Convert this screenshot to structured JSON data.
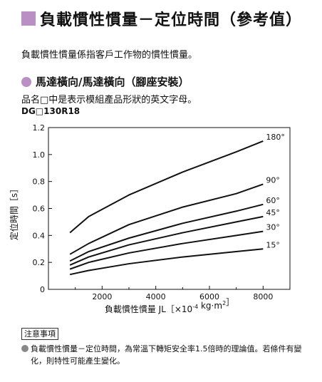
{
  "header": {
    "title": "負載慣性慣量－定位時間（參考值）",
    "subtitle": "負載慣性慣量係指客戶工作物的慣性慣量。"
  },
  "section": {
    "title": "馬達橫向/馬達橫向（腳座安裝）",
    "description": "品名□中是表示模組產品形狀的英文字母。",
    "model": "DG□130R18"
  },
  "colors": {
    "accent": "#b98fc4",
    "line": "#111111",
    "note_bullet": "#888888"
  },
  "chart_data": {
    "type": "line",
    "title": "",
    "xlabel": "負載慣性慣量 JL［×10",
    "xlabel_exp": "-4",
    "xlabel_unit": " kg·m",
    "xlabel_unit_exp": "2",
    "xlabel_close": "］",
    "ylabel": "定位時間［s］",
    "xlim": [
      0,
      9000
    ],
    "ylim": [
      0,
      1.2
    ],
    "x_ticks": [
      {
        "value": 2000,
        "label": "2000"
      },
      {
        "value": 4000,
        "label": "4000"
      },
      {
        "value": 6000,
        "label": "6000"
      },
      {
        "value": 8000,
        "label": "8000"
      }
    ],
    "y_ticks": [
      {
        "value": 0,
        "label": "0"
      },
      {
        "value": 0.2,
        "label": "0.2"
      },
      {
        "value": 0.4,
        "label": "0.4"
      },
      {
        "value": 0.6,
        "label": "0.6"
      },
      {
        "value": 0.8,
        "label": "0.8"
      },
      {
        "value": 1.0,
        "label": "1.0"
      },
      {
        "value": 1.2,
        "label": "1.2"
      }
    ],
    "grid": false,
    "series": [
      {
        "name": "15°",
        "x": [
          800,
          1500,
          3000,
          5000,
          7000,
          8000
        ],
        "y": [
          0.11,
          0.14,
          0.19,
          0.24,
          0.28,
          0.3
        ]
      },
      {
        "name": "30°",
        "x": [
          800,
          1500,
          3000,
          5000,
          7000,
          8000
        ],
        "y": [
          0.15,
          0.2,
          0.27,
          0.34,
          0.4,
          0.43
        ]
      },
      {
        "name": "45°",
        "x": [
          800,
          1500,
          3000,
          5000,
          7000,
          8000
        ],
        "y": [
          0.18,
          0.24,
          0.33,
          0.42,
          0.5,
          0.54
        ]
      },
      {
        "name": "60°",
        "x": [
          800,
          1500,
          3000,
          5000,
          7000,
          8000
        ],
        "y": [
          0.21,
          0.28,
          0.38,
          0.49,
          0.58,
          0.63
        ]
      },
      {
        "name": "90°",
        "x": [
          800,
          1500,
          3000,
          5000,
          7000,
          8000
        ],
        "y": [
          0.26,
          0.34,
          0.48,
          0.61,
          0.71,
          0.78
        ]
      },
      {
        "name": "180°",
        "x": [
          800,
          1500,
          3000,
          5000,
          7000,
          8000
        ],
        "y": [
          0.42,
          0.54,
          0.7,
          0.87,
          1.02,
          1.1
        ]
      }
    ]
  },
  "note": {
    "label": "注意事項",
    "text": "負載慣性慣量－定位時間，為常溫下轉矩安全率1.5倍時的理論值。若條件有變化，則特性可能產生變化。"
  }
}
